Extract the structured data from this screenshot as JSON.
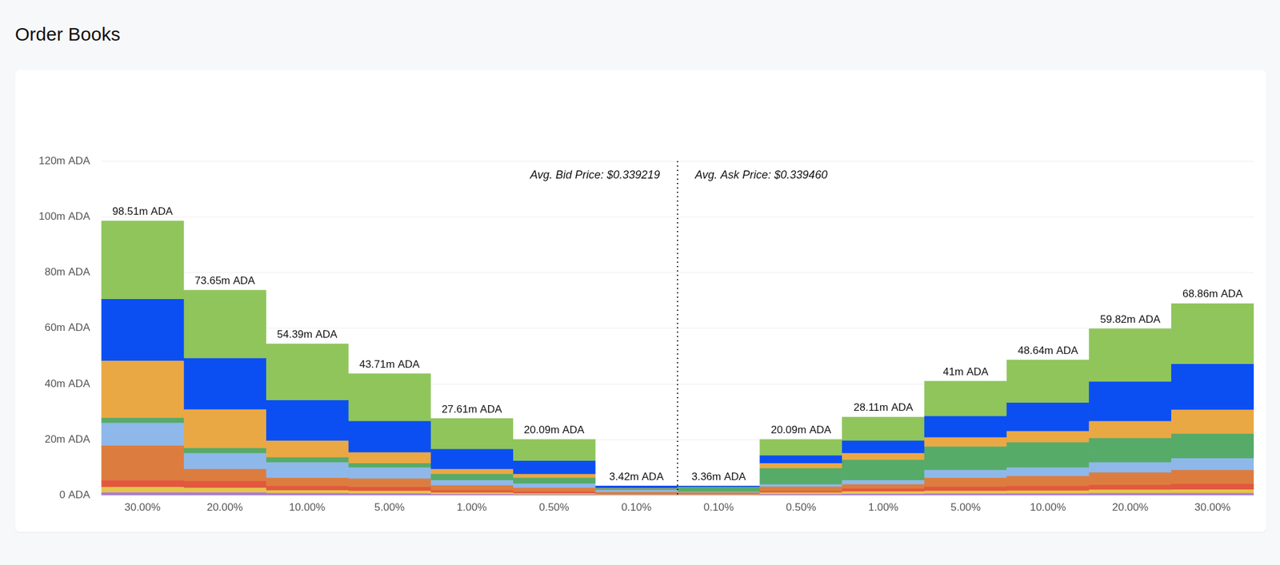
{
  "chart_data": {
    "type": "bar",
    "title": "Order Books",
    "stacked": true,
    "grid": true,
    "annotations": [
      "Avg. Bid Price: $0.339219",
      "Avg. Ask Price: $0.339460"
    ],
    "categories": [
      "30.00%",
      "20.00%",
      "10.00%",
      "5.00%",
      "1.00%",
      "0.50%",
      "0.10%",
      "0.10%",
      "0.50%",
      "1.00%",
      "5.00%",
      "10.00%",
      "20.00%",
      "30.00%"
    ],
    "totals": [
      98.51,
      73.65,
      54.39,
      43.71,
      27.61,
      20.09,
      3.42,
      3.36,
      20.09,
      28.11,
      41,
      48.64,
      59.82,
      68.86
    ],
    "total_labels": [
      "98.51m ADA",
      "73.65m ADA",
      "54.39m ADA",
      "43.71m ADA",
      "27.61m ADA",
      "20.09m ADA",
      "3.42m ADA",
      "3.36m ADA",
      "20.09m ADA",
      "28.11m ADA",
      "41m ADA",
      "48.64m ADA",
      "59.82m ADA",
      "68.86m ADA"
    ],
    "series": [
      {
        "color": "#a77bd6",
        "values": [
          1.0,
          1.0,
          0.8,
          0.7,
          0.4,
          0.3,
          0.2,
          0.2,
          0.4,
          0.5,
          0.6,
          0.7,
          0.8,
          0.8
        ]
      },
      {
        "color": "#e4c54c",
        "values": [
          2.0,
          1.7,
          1.0,
          0.9,
          0.6,
          0.4,
          0.2,
          0.2,
          0.6,
          0.9,
          1.0,
          1.0,
          1.2,
          1.3
        ]
      },
      {
        "color": "#e2583e",
        "values": [
          2.4,
          2.4,
          1.5,
          1.4,
          0.8,
          0.6,
          0.3,
          0.3,
          0.6,
          1.0,
          1.5,
          1.6,
          1.7,
          2.0
        ]
      },
      {
        "color": "#dc7d3f",
        "values": [
          12.4,
          4.3,
          3.0,
          3.0,
          1.8,
          1.4,
          0.4,
          0.3,
          1.5,
          1.5,
          3.2,
          3.6,
          4.5,
          5.0
        ]
      },
      {
        "color": "#8fb8ea",
        "values": [
          8.2,
          5.7,
          5.5,
          4.0,
          1.8,
          1.5,
          0.8,
          0.3,
          0.8,
          1.5,
          2.8,
          3.1,
          3.6,
          4.2
        ]
      },
      {
        "color": "#56ab68",
        "values": [
          1.8,
          1.8,
          1.8,
          1.5,
          2.2,
          2.1,
          0.5,
          1.6,
          5.8,
          7.3,
          8.4,
          9.0,
          8.7,
          8.8
        ]
      },
      {
        "color": "#eaa844",
        "values": [
          20.5,
          13.9,
          6.0,
          3.9,
          1.8,
          1.3,
          0.2,
          0.1,
          1.8,
          2.4,
          3.3,
          4.0,
          6.1,
          8.6
        ]
      },
      {
        "color": "#0b4ff2",
        "values": [
          22.1,
          18.4,
          14.5,
          11.2,
          7.2,
          4.8,
          0.82,
          0.36,
          2.8,
          4.5,
          7.6,
          10.2,
          14.2,
          16.4
        ]
      },
      {
        "color": "#90c55c",
        "values": [
          28.11,
          24.45,
          20.29,
          17.11,
          11.01,
          7.69,
          0,
          0,
          5.79,
          8.51,
          12.6,
          15.44,
          19.02,
          21.76
        ]
      }
    ],
    "ylim": [
      0,
      120
    ],
    "yticks": [
      {
        "value": 0,
        "label": "0 ADA"
      },
      {
        "value": 20,
        "label": "20m ADA"
      },
      {
        "value": 40,
        "label": "40m ADA"
      },
      {
        "value": 60,
        "label": "60m ADA"
      },
      {
        "value": 80,
        "label": "80m ADA"
      },
      {
        "value": 100,
        "label": "100m ADA"
      },
      {
        "value": 120,
        "label": "120m ADA"
      }
    ],
    "legend": "none"
  }
}
